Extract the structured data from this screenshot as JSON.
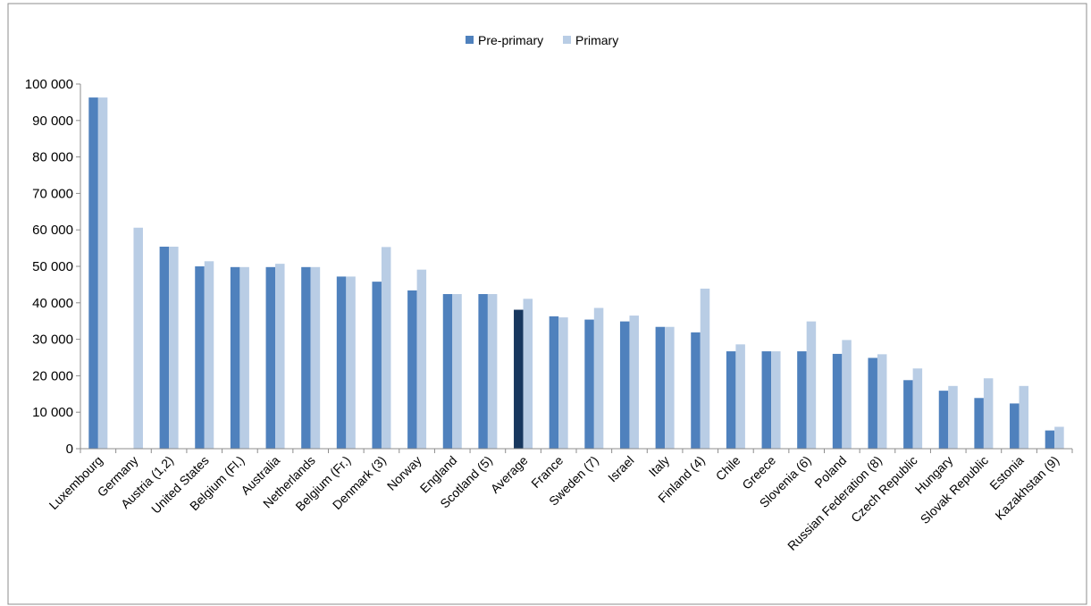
{
  "chart_data": {
    "type": "bar",
    "title": "",
    "xlabel": "",
    "ylabel": "",
    "ylim": [
      0,
      100000
    ],
    "yticks": [
      0,
      10000,
      20000,
      30000,
      40000,
      50000,
      60000,
      70000,
      80000,
      90000,
      100000
    ],
    "ytick_labels": [
      "0",
      "10 000",
      "20 000",
      "30 000",
      "40 000",
      "50 000",
      "60 000",
      "70 000",
      "80 000",
      "90 000",
      "100 000"
    ],
    "grid": false,
    "legend_position": "top-center",
    "categories": [
      "Luxembourg",
      "Germany",
      "Austria (1,2)",
      "United States",
      "Belgium (Fl.)",
      "Australia",
      "Netherlands",
      "Belgium (Fr.)",
      "Denmark (3)",
      "Norway",
      "England",
      "Scotland (5)",
      "Average",
      "France",
      "Sweden (7)",
      "Israel",
      "Italy",
      "Finland (4)",
      "Chile",
      "Greece",
      "Slovenia (6)",
      "Poland",
      "Russian Federation (8)",
      "Czech Republic",
      "Hungary",
      "Slovak Republic",
      "Estonia",
      "Kazakhstan (9)"
    ],
    "highlight_category": "Average",
    "highlight_color": "#17375e",
    "series": [
      {
        "name": "Pre-primary",
        "color": "#4f81bd",
        "values": [
          96300,
          null,
          55400,
          50000,
          49800,
          49800,
          49800,
          47200,
          45800,
          43400,
          42400,
          42400,
          38100,
          36300,
          35400,
          34900,
          33400,
          31900,
          26700,
          26700,
          26700,
          26000,
          24900,
          18800,
          15900,
          13900,
          12400,
          5000
        ]
      },
      {
        "name": "Primary",
        "color": "#b9cde5",
        "values": [
          96300,
          60600,
          55400,
          51400,
          49800,
          50700,
          49800,
          47200,
          55300,
          49100,
          42400,
          42400,
          41100,
          36000,
          38600,
          36500,
          33400,
          43900,
          28600,
          26700,
          34900,
          29800,
          25900,
          22000,
          17200,
          19300,
          17200,
          6000
        ]
      }
    ]
  }
}
